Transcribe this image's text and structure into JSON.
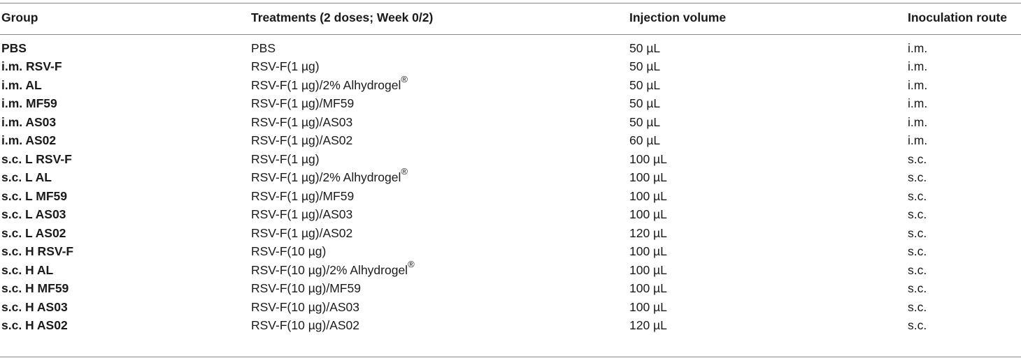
{
  "table": {
    "headers": [
      "Group",
      "Treatments (2 doses; Week 0/2)",
      "Injection volume",
      "Inoculation route"
    ],
    "rows": [
      {
        "group": "PBS",
        "treatment": "PBS",
        "treatment_sup": "",
        "volume": "50 µL",
        "route": "i.m."
      },
      {
        "group": "i.m. RSV-F",
        "treatment": "RSV-F(1 µg)",
        "treatment_sup": "",
        "volume": "50 µL",
        "route": "i.m."
      },
      {
        "group": "i.m. AL",
        "treatment": "RSV-F(1 µg)/2% Alhydrogel",
        "treatment_sup": "®",
        "volume": "50 µL",
        "route": "i.m."
      },
      {
        "group": "i.m. MF59",
        "treatment": "RSV-F(1 µg)/MF59",
        "treatment_sup": "",
        "volume": "50 µL",
        "route": "i.m."
      },
      {
        "group": "i.m. AS03",
        "treatment": "RSV-F(1 µg)/AS03",
        "treatment_sup": "",
        "volume": "50 µL",
        "route": "i.m."
      },
      {
        "group": "i.m. AS02",
        "treatment": "RSV-F(1 µg)/AS02",
        "treatment_sup": "",
        "volume": "60 µL",
        "route": "i.m."
      },
      {
        "group": "s.c. L RSV-F",
        "treatment": "RSV-F(1 µg)",
        "treatment_sup": "",
        "volume": "100 µL",
        "route": "s.c."
      },
      {
        "group": "s.c. L AL",
        "treatment": "RSV-F(1 µg)/2% Alhydrogel",
        "treatment_sup": "®",
        "volume": "100 µL",
        "route": "s.c."
      },
      {
        "group": "s.c. L MF59",
        "treatment": "RSV-F(1 µg)/MF59",
        "treatment_sup": "",
        "volume": "100 µL",
        "route": "s.c."
      },
      {
        "group": "s.c. L AS03",
        "treatment": "RSV-F(1 µg)/AS03",
        "treatment_sup": "",
        "volume": "100 µL",
        "route": "s.c."
      },
      {
        "group": "s.c. L AS02",
        "treatment": "RSV-F(1 µg)/AS02",
        "treatment_sup": "",
        "volume": "120 µL",
        "route": "s.c."
      },
      {
        "group": "s.c. H RSV-F",
        "treatment": "RSV-F(10 µg)",
        "treatment_sup": "",
        "volume": "100 µL",
        "route": "s.c."
      },
      {
        "group": "s.c. H AL",
        "treatment": "RSV-F(10 µg)/2% Alhydrogel",
        "treatment_sup": "®",
        "volume": "100 µL",
        "route": "s.c."
      },
      {
        "group": "s.c. H MF59",
        "treatment": "RSV-F(10 µg)/MF59",
        "treatment_sup": "",
        "volume": "100 µL",
        "route": "s.c."
      },
      {
        "group": "s.c. H AS03",
        "treatment": "RSV-F(10 µg)/AS03",
        "treatment_sup": "",
        "volume": "100 µL",
        "route": "s.c."
      },
      {
        "group": "s.c. H AS02",
        "treatment": "RSV-F(10 µg)/AS02",
        "treatment_sup": "",
        "volume": "120 µL",
        "route": "s.c."
      }
    ]
  }
}
